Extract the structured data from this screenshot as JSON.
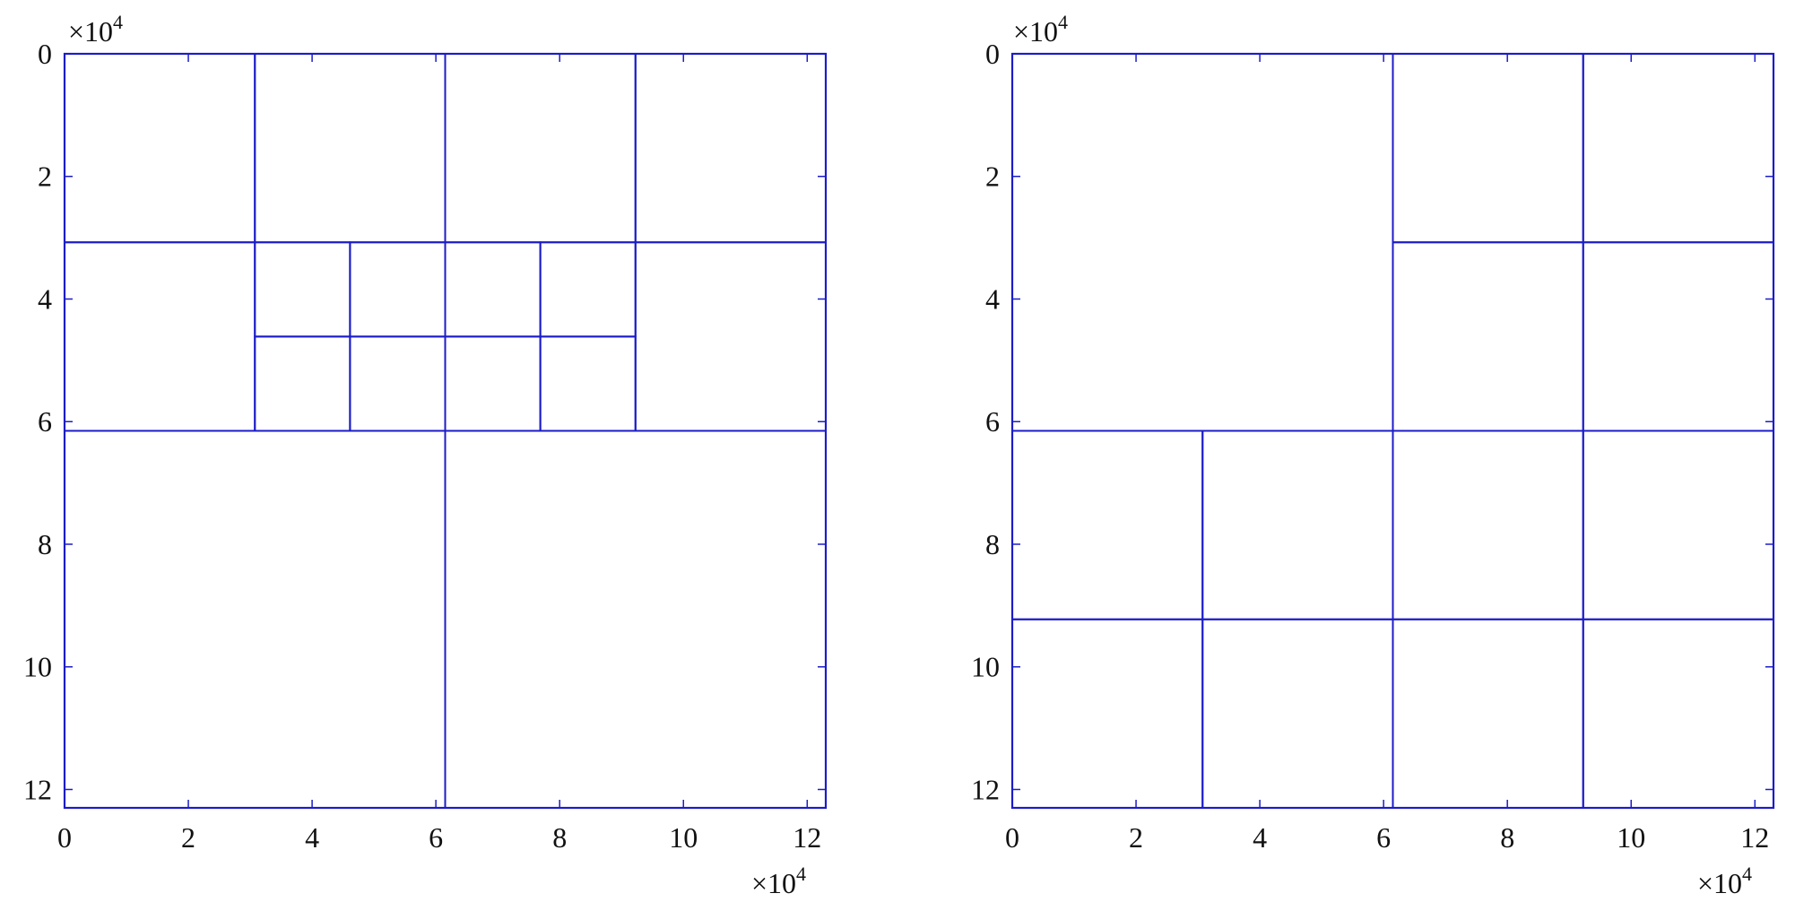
{
  "colors": {
    "partition": "#1c1cc8",
    "dense_block": "#ff1a3c",
    "background": "#ffffff",
    "text": "#111111"
  },
  "panels": [
    {
      "name": "left-hmatrix",
      "axis_multiplier": "×10",
      "axis_exponent": "4",
      "x_ticks": [
        "0",
        "2",
        "4",
        "6",
        "8",
        "10",
        "12"
      ],
      "y_ticks": [
        "0",
        "2",
        "4",
        "6",
        "8",
        "10",
        "12"
      ]
    },
    {
      "name": "right-hmatrix",
      "axis_multiplier": "×10",
      "axis_exponent": "4",
      "x_ticks": [
        "0",
        "2",
        "4",
        "6",
        "8",
        "10",
        "12"
      ],
      "y_ticks": [
        "0",
        "2",
        "4",
        "6",
        "8",
        "10",
        "12"
      ]
    }
  ],
  "matrix": {
    "size": 12.3,
    "tick_values": [
      0,
      2,
      4,
      6,
      8,
      10,
      12
    ]
  }
}
